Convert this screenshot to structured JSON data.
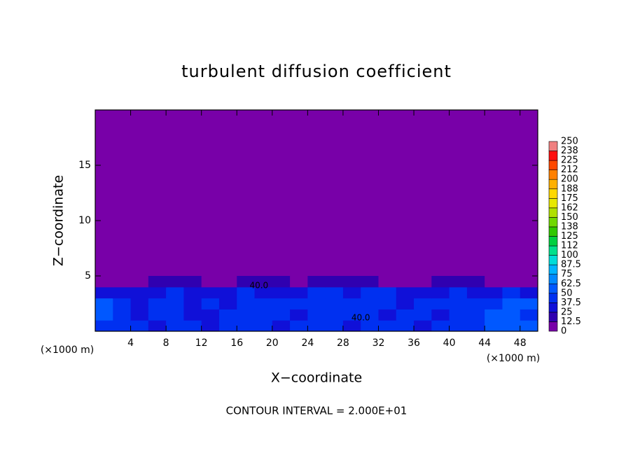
{
  "chart_data": {
    "type": "heatmap",
    "title": "turbulent diffusion coefficient",
    "xlabel": "X−coordinate",
    "ylabel": "Z−coordinate",
    "x_unit": "(×1000 m)",
    "footer": "CONTOUR INTERVAL = 2.000E+01",
    "xlim": [
      0,
      50
    ],
    "ylim": [
      0,
      20
    ],
    "xticks": [
      4,
      8,
      12,
      16,
      20,
      24,
      28,
      32,
      36,
      40,
      44,
      48
    ],
    "yticks": [
      5,
      10,
      15
    ],
    "x": [
      1,
      3,
      5,
      7,
      9,
      11,
      13,
      15,
      17,
      19,
      21,
      23,
      25,
      27,
      29,
      31,
      33,
      35,
      37,
      39,
      41,
      43,
      45,
      47,
      49
    ],
    "y": [
      0.5,
      1.5,
      2.5,
      3.5,
      4.5
    ],
    "z": [
      [
        40,
        45,
        40,
        35,
        45,
        40,
        30,
        40,
        45,
        40,
        35,
        40,
        45,
        40,
        35,
        40,
        45,
        40,
        35,
        40,
        45,
        40,
        50,
        55,
        50
      ],
      [
        55,
        40,
        35,
        45,
        40,
        30,
        35,
        40,
        45,
        40,
        45,
        35,
        40,
        40,
        45,
        40,
        35,
        40,
        40,
        35,
        40,
        45,
        55,
        50,
        45
      ],
      [
        50,
        40,
        30,
        40,
        45,
        35,
        40,
        35,
        45,
        40,
        40,
        45,
        40,
        45,
        40,
        45,
        40,
        35,
        40,
        45,
        40,
        40,
        45,
        55,
        50
      ],
      [
        35,
        30,
        25,
        30,
        40,
        35,
        30,
        35,
        40,
        35,
        30,
        35,
        40,
        40,
        35,
        40,
        40,
        30,
        30,
        35,
        40,
        35,
        30,
        40,
        35
      ],
      [
        0,
        0,
        0,
        15,
        20,
        15,
        0,
        10,
        20,
        20,
        15,
        10,
        15,
        20,
        15,
        20,
        10,
        0,
        10,
        15,
        20,
        15,
        0,
        0,
        0
      ]
    ],
    "colorbar_ticks": [
      0,
      12.5,
      25,
      37.5,
      50,
      62.5,
      75,
      87.5,
      100,
      112,
      125,
      138,
      150,
      162,
      175,
      188,
      200,
      212,
      225,
      238,
      250
    ],
    "colors": [
      "#7800a8",
      "#3000b0",
      "#1010d8",
      "#0030f0",
      "#0058ff",
      "#0088ff",
      "#00b4ff",
      "#00dcd8",
      "#00e08c",
      "#00d040",
      "#30c800",
      "#70d800",
      "#b0e000",
      "#e8e800",
      "#ffd800",
      "#ffb000",
      "#ff8000",
      "#ff4800",
      "#ff1010",
      "#f08080"
    ],
    "annotations": [
      "40.0",
      "40.0"
    ]
  }
}
